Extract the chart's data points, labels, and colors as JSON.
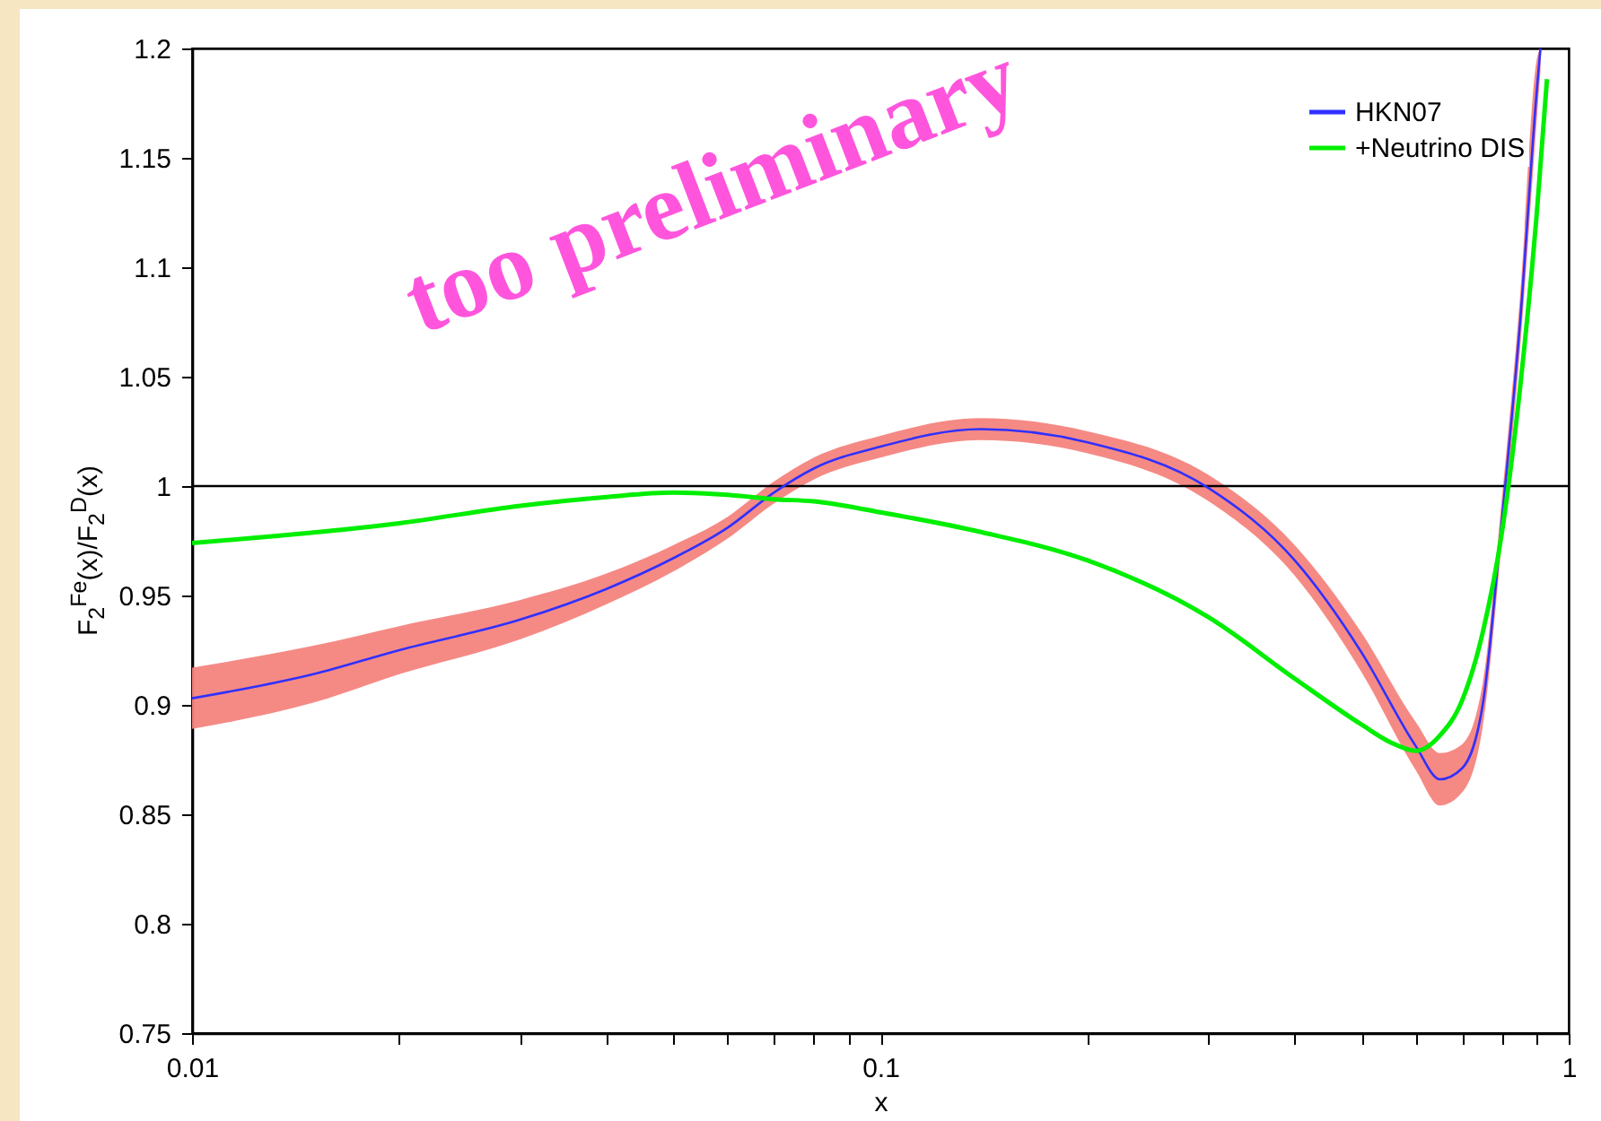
{
  "chart_data": {
    "type": "line",
    "xlabel": "x",
    "ylabel": "F$_{2}$$^{Fe}$(x)/F$_{2}$$^{D}$(x)",
    "log": "x",
    "xlim": [
      0.01,
      1
    ],
    "ylim": [
      0.75,
      1.2
    ],
    "xticks": [
      0.01,
      {
        "value": 0.02,
        "label": null
      },
      {
        "value": 0.03,
        "label": null
      },
      {
        "value": 0.04,
        "label": null
      },
      {
        "value": 0.05,
        "label": null
      },
      {
        "value": 0.06,
        "label": null
      },
      {
        "value": 0.07,
        "label": null
      },
      {
        "value": 0.08,
        "label": null
      },
      {
        "value": 0.09,
        "label": null
      },
      0.1,
      {
        "value": 0.2,
        "label": null
      },
      {
        "value": 0.3,
        "label": null
      },
      {
        "value": 0.4,
        "label": null
      },
      {
        "value": 0.5,
        "label": null
      },
      {
        "value": 0.6,
        "label": null
      },
      {
        "value": 0.7,
        "label": null
      },
      {
        "value": 0.8,
        "label": null
      },
      {
        "value": 0.9,
        "label": null
      },
      1
    ],
    "yticks": [
      0.75,
      0.8,
      0.85,
      0.9,
      0.95,
      1,
      1.05,
      1.1,
      1.15,
      1.2
    ],
    "grid": false,
    "legend": "top right",
    "ref_lines": [
      {
        "axis": "y",
        "value": 1,
        "color": "#000000"
      }
    ],
    "annotations": [
      "too preliminary"
    ],
    "series": [
      {
        "name": "HKN07",
        "color": "#3030ff",
        "x": [
          0.01,
          0.015,
          0.02,
          0.03,
          0.04,
          0.05,
          0.06,
          0.07,
          0.08,
          0.1,
          0.14,
          0.2,
          0.3,
          0.4,
          0.5,
          0.6,
          0.65,
          0.7,
          0.75,
          0.8,
          0.85,
          0.9,
          0.91
        ],
        "values": [
          0.903,
          0.914,
          0.925,
          0.939,
          0.953,
          0.967,
          0.981,
          0.997,
          1.008,
          1.018,
          1.026,
          1.02,
          0.999,
          0.966,
          0.924,
          0.881,
          0.866,
          0.871,
          0.9,
          0.985,
          1.075,
          1.183,
          1.2
        ],
        "lower": [
          0.889,
          0.901,
          0.914,
          0.93,
          0.946,
          0.961,
          0.976,
          0.992,
          1.003,
          1.013,
          1.021,
          1.015,
          0.993,
          0.959,
          0.915,
          0.87,
          0.854,
          0.86,
          0.89,
          0.975,
          1.063,
          1.17,
          1.19
        ],
        "upper": [
          0.917,
          0.927,
          0.936,
          0.948,
          0.96,
          0.973,
          0.986,
          1.002,
          1.013,
          1.023,
          1.031,
          1.025,
          1.005,
          0.973,
          0.933,
          0.892,
          0.878,
          0.882,
          0.91,
          0.995,
          1.087,
          1.196,
          1.2
        ]
      },
      {
        "name": "+Neutrino DIS",
        "color": "#00ee00",
        "x": [
          0.01,
          0.02,
          0.03,
          0.04,
          0.05,
          0.06,
          0.07,
          0.08,
          0.1,
          0.14,
          0.2,
          0.3,
          0.4,
          0.5,
          0.55,
          0.6,
          0.65,
          0.7,
          0.75,
          0.8,
          0.85,
          0.9,
          0.93
        ],
        "values": [
          0.974,
          0.983,
          0.991,
          0.995,
          0.997,
          0.996,
          0.994,
          0.993,
          0.988,
          0.979,
          0.966,
          0.94,
          0.912,
          0.891,
          0.883,
          0.879,
          0.886,
          0.902,
          0.933,
          0.979,
          1.045,
          1.127,
          1.186
        ]
      }
    ]
  }
}
